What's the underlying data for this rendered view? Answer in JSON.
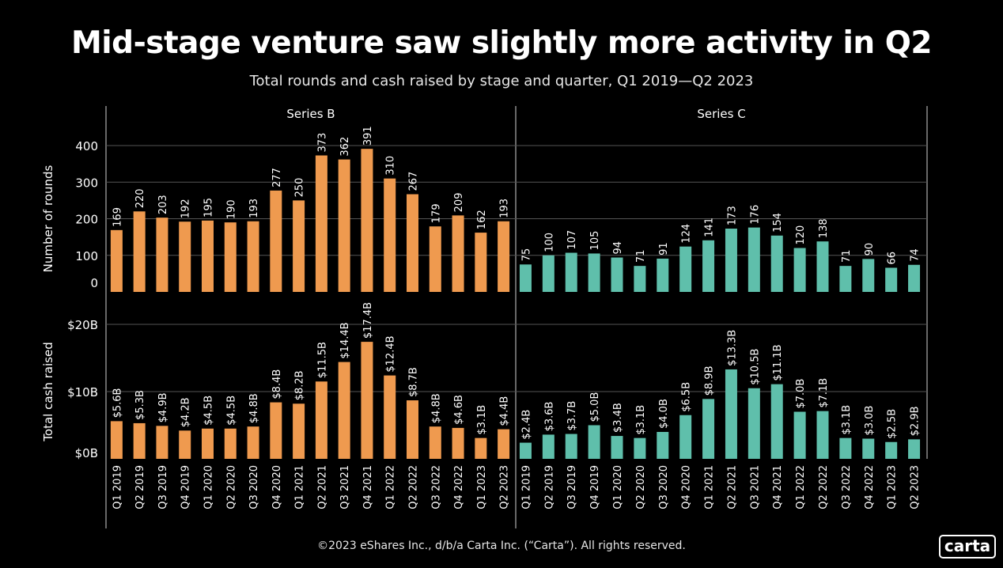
{
  "title": "Mid-stage venture saw slightly more activity in Q2",
  "subtitle": "Total rounds and cash raised by stage and quarter, Q1 2019—Q2 2023",
  "footer": "©2023 eShares Inc., d/b/a Carta Inc. (“Carta”). All rights reserved.",
  "logo_text": "carta",
  "colors": {
    "series_b": "#ef9a4f",
    "series_c": "#5fbfab",
    "background": "#000000",
    "grid": "#555555"
  },
  "chart_data": {
    "type": "bar",
    "facets": [
      "Series B",
      "Series C"
    ],
    "categories": [
      "Q1 2019",
      "Q2 2019",
      "Q3 2019",
      "Q4 2019",
      "Q1 2020",
      "Q2 2020",
      "Q3 2020",
      "Q4 2020",
      "Q1 2021",
      "Q2 2021",
      "Q3 2021",
      "Q4 2021",
      "Q1 2022",
      "Q2 2022",
      "Q3 2022",
      "Q4 2022",
      "Q1 2023",
      "Q2 2023"
    ],
    "panels": [
      {
        "ylabel": "Number of rounds",
        "ylim": [
          0,
          400
        ],
        "ticks": [
          0,
          100,
          200,
          300,
          400
        ],
        "tick_labels": [
          "0",
          "100",
          "200",
          "300",
          "400"
        ],
        "values": {
          "Series B": [
            169,
            220,
            203,
            192,
            195,
            190,
            193,
            277,
            250,
            373,
            362,
            391,
            310,
            267,
            179,
            209,
            162,
            193
          ],
          "Series C": [
            75,
            100,
            107,
            105,
            94,
            71,
            91,
            124,
            141,
            173,
            176,
            154,
            120,
            138,
            71,
            90,
            66,
            74
          ]
        },
        "labels": {
          "Series B": [
            "169",
            "220",
            "203",
            "192",
            "195",
            "190",
            "193",
            "277",
            "250",
            "373",
            "362",
            "391",
            "310",
            "267",
            "179",
            "209",
            "162",
            "193"
          ],
          "Series C": [
            "75",
            "100",
            "107",
            "105",
            "94",
            "71",
            "91",
            "124",
            "141",
            "173",
            "176",
            "154",
            "120",
            "138",
            "71",
            "90",
            "66",
            "74"
          ]
        }
      },
      {
        "ylabel": "Total cash raised",
        "ylim": [
          0,
          20
        ],
        "unit": "billions USD",
        "ticks": [
          0,
          10,
          20
        ],
        "tick_labels": [
          "$0B",
          "$10B",
          "$20B"
        ],
        "values": {
          "Series B": [
            5.6,
            5.3,
            4.9,
            4.2,
            4.5,
            4.5,
            4.8,
            8.4,
            8.2,
            11.5,
            14.4,
            17.4,
            12.4,
            8.7,
            4.8,
            4.6,
            3.1,
            4.4
          ],
          "Series C": [
            2.4,
            3.6,
            3.7,
            5.0,
            3.4,
            3.1,
            4.0,
            6.5,
            8.9,
            13.3,
            10.5,
            11.1,
            7.0,
            7.1,
            3.1,
            3.0,
            2.5,
            2.9
          ]
        },
        "labels": {
          "Series B": [
            "$5.6B",
            "$5.3B",
            "$4.9B",
            "$4.2B",
            "$4.5B",
            "$4.5B",
            "$4.8B",
            "$8.4B",
            "$8.2B",
            "$11.5B",
            "$14.4B",
            "$17.4B",
            "$12.4B",
            "$8.7B",
            "$4.8B",
            "$4.6B",
            "$3.1B",
            "$4.4B"
          ],
          "Series C": [
            "$2.4B",
            "$3.6B",
            "$3.7B",
            "$5.0B",
            "$3.4B",
            "$3.1B",
            "$4.0B",
            "$6.5B",
            "$8.9B",
            "$13.3B",
            "$10.5B",
            "$11.1B",
            "$7.0B",
            "$7.1B",
            "$3.1B",
            "$3.0B",
            "$2.5B",
            "$2.9B"
          ]
        }
      }
    ],
    "grid": true,
    "legend": "none"
  }
}
